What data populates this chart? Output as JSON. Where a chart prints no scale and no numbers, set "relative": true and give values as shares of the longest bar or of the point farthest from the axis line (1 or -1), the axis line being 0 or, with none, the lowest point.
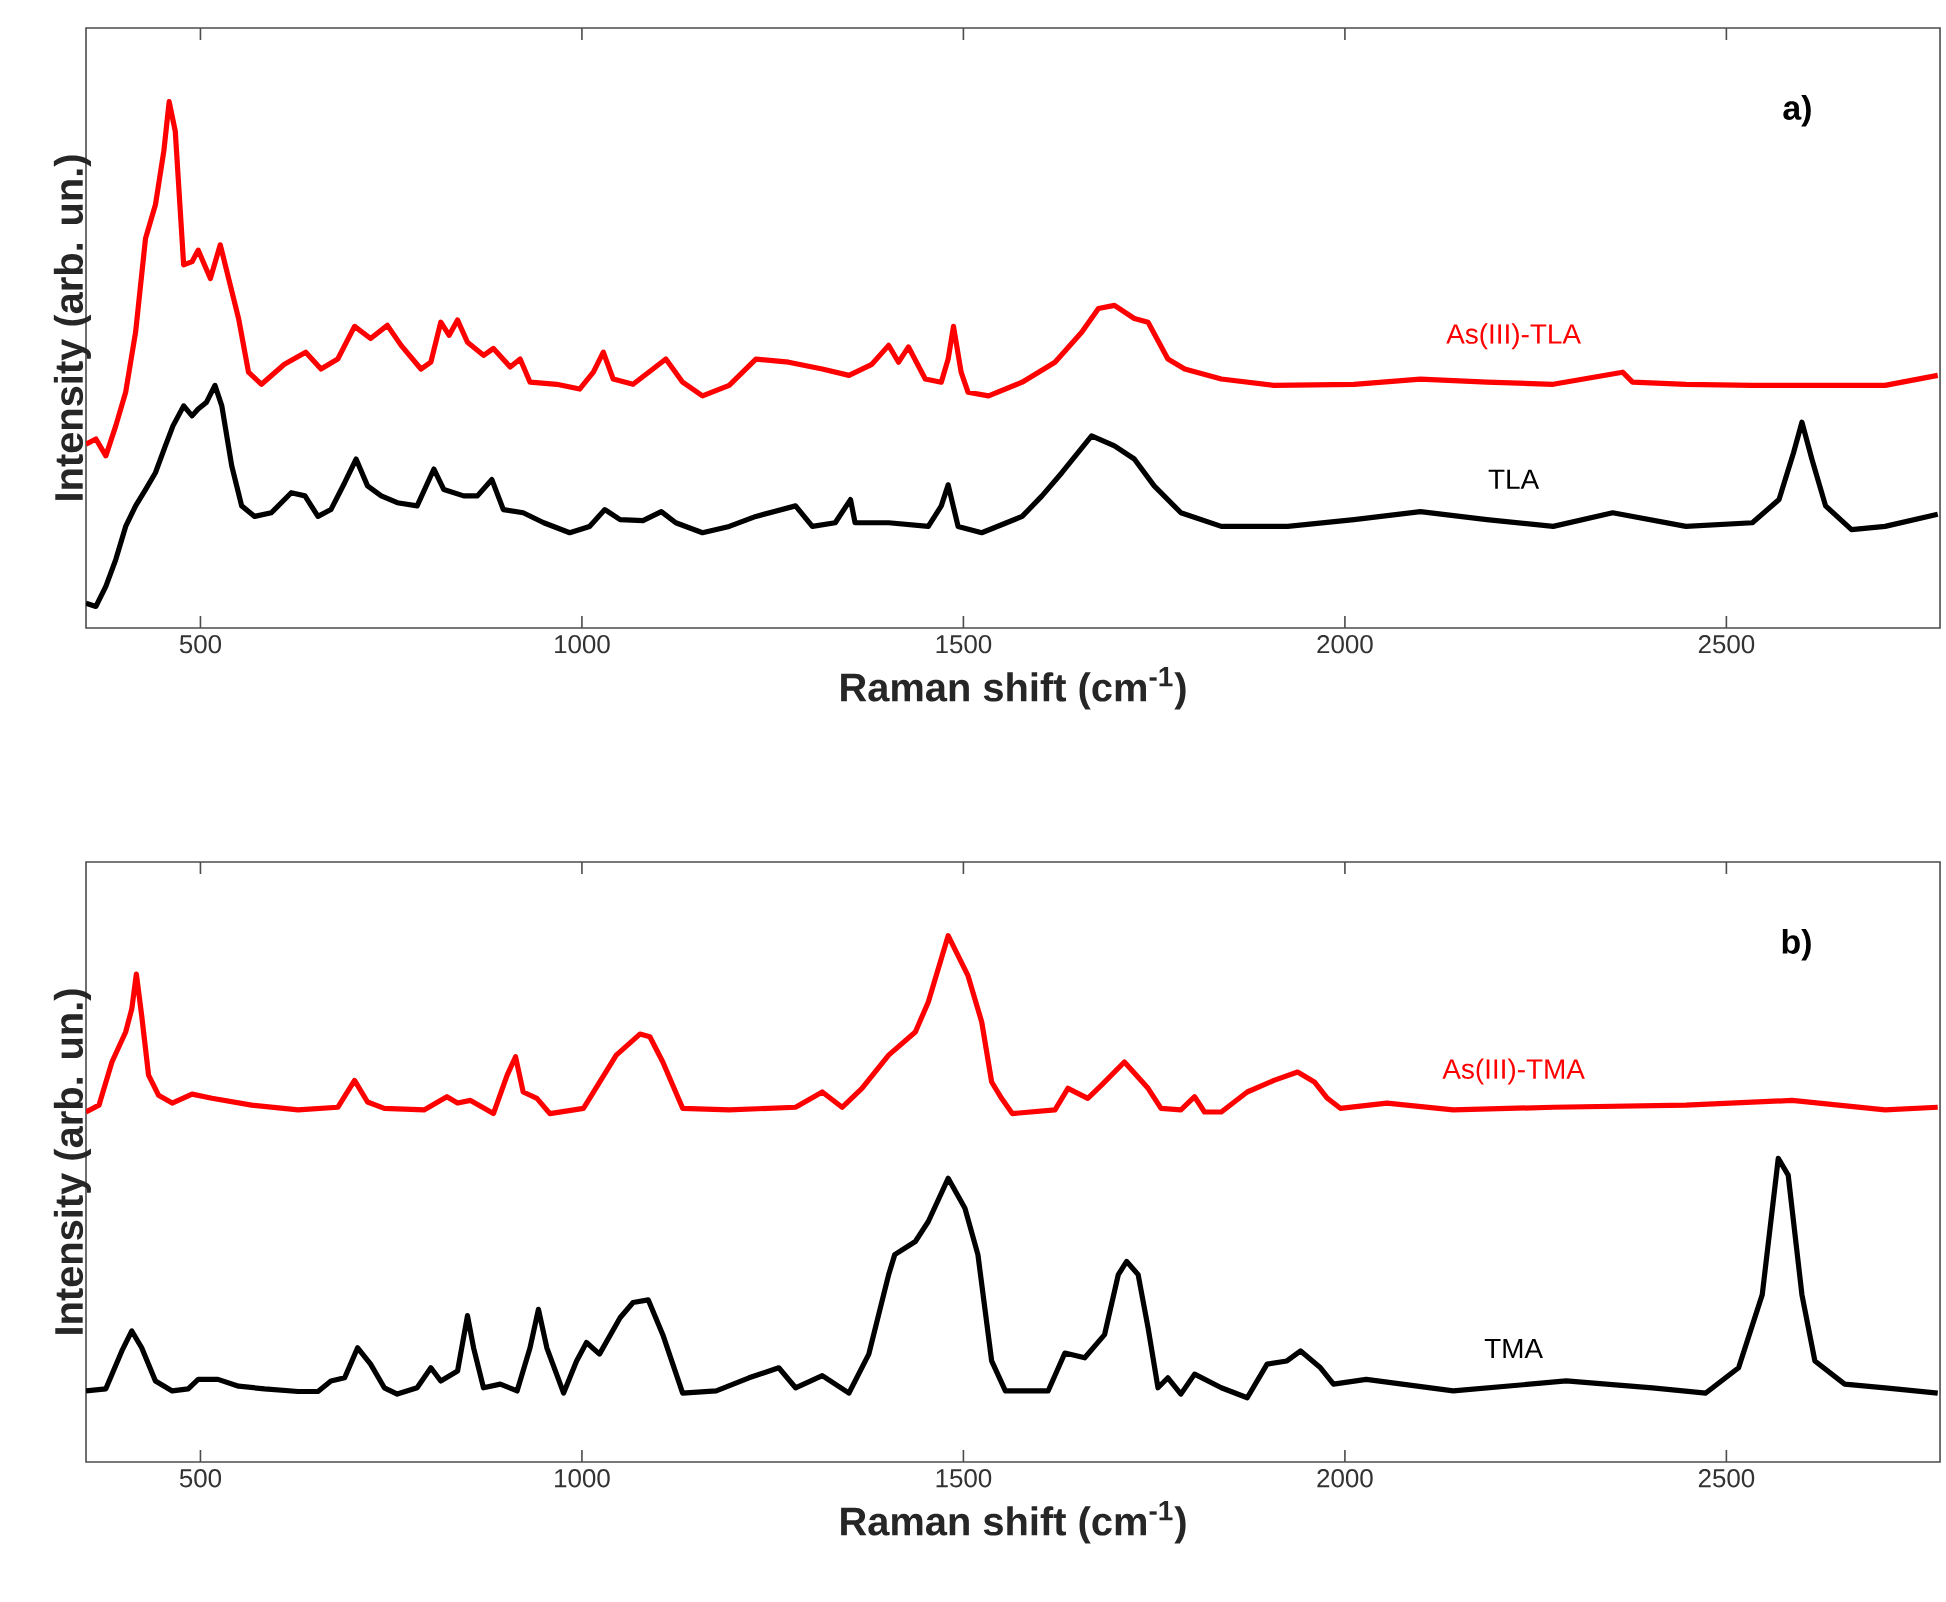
{
  "chart_data": [
    {
      "type": "line",
      "relative": true,
      "xlabel": "Raman shift (cm$^{-1}$)",
      "ylabel": "Intensity (arb. un.)",
      "xlim": [
        350,
        2780
      ],
      "xticks": [
        500,
        1000,
        1500,
        2000,
        2500
      ],
      "annotations": [
        "a)"
      ],
      "series": [
        {
          "name": "As(III)-TLA",
          "color": "#ff0000",
          "x": [
            350,
            363,
            376,
            389,
            402,
            415,
            428,
            441,
            452,
            459,
            467,
            478,
            489,
            497,
            513,
            526,
            537,
            550,
            563,
            580,
            610,
            638,
            658,
            680,
            702,
            723,
            745,
            763,
            789,
            802,
            815,
            826,
            837,
            850,
            871,
            884,
            906,
            919,
            932,
            967,
            997,
            1015,
            1028,
            1041,
            1067,
            1093,
            1110,
            1132,
            1158,
            1193,
            1228,
            1271,
            1315,
            1350,
            1380,
            1402,
            1415,
            1428,
            1450,
            1471,
            1480,
            1487,
            1497,
            1506,
            1533,
            1577,
            1620,
            1655,
            1677,
            1698,
            1724,
            1742,
            1768,
            1790,
            1838,
            1907,
            2012,
            2099,
            2186,
            2273,
            2364,
            2377,
            2447,
            2534,
            2621,
            2708,
            2777
          ],
          "values": [
            0.349,
            0.359,
            0.327,
            0.384,
            0.448,
            0.562,
            0.74,
            0.804,
            0.906,
            1.0,
            0.944,
            0.69,
            0.696,
            0.718,
            0.664,
            0.728,
            0.664,
            0.588,
            0.486,
            0.463,
            0.501,
            0.524,
            0.492,
            0.511,
            0.573,
            0.55,
            0.575,
            0.537,
            0.492,
            0.505,
            0.581,
            0.556,
            0.585,
            0.543,
            0.518,
            0.531,
            0.496,
            0.511,
            0.467,
            0.463,
            0.454,
            0.486,
            0.524,
            0.473,
            0.463,
            0.492,
            0.511,
            0.467,
            0.441,
            0.461,
            0.511,
            0.505,
            0.492,
            0.48,
            0.501,
            0.537,
            0.505,
            0.534,
            0.473,
            0.467,
            0.511,
            0.573,
            0.486,
            0.448,
            0.441,
            0.467,
            0.505,
            0.562,
            0.607,
            0.613,
            0.588,
            0.581,
            0.511,
            0.492,
            0.473,
            0.461,
            0.463,
            0.473,
            0.467,
            0.463,
            0.486,
            0.467,
            0.463,
            0.461,
            0.461,
            0.461,
            0.48
          ]
        },
        {
          "name": "TLA",
          "color": "#000000",
          "x": [
            350,
            363,
            376,
            389,
            402,
            415,
            428,
            441,
            454,
            464,
            478,
            489,
            497,
            508,
            519,
            528,
            541,
            554,
            571,
            593,
            619,
            637,
            654,
            671,
            689,
            704,
            719,
            737,
            758,
            784,
            806,
            819,
            845,
            863,
            882,
            897,
            923,
            950,
            984,
            1010,
            1030,
            1050,
            1080,
            1104,
            1123,
            1158,
            1193,
            1228,
            1280,
            1302,
            1332,
            1352,
            1358,
            1402,
            1454,
            1471,
            1480,
            1493,
            1524,
            1577,
            1603,
            1629,
            1668,
            1698,
            1724,
            1750,
            1785,
            1838,
            1925,
            2012,
            2099,
            2186,
            2273,
            2351,
            2447,
            2534,
            2569,
            2588,
            2599,
            2612,
            2630,
            2664,
            2708,
            2777
          ],
          "values": [
            0.047,
            0.041,
            0.079,
            0.13,
            0.193,
            0.232,
            0.263,
            0.295,
            0.346,
            0.384,
            0.422,
            0.403,
            0.416,
            0.429,
            0.461,
            0.422,
            0.308,
            0.232,
            0.212,
            0.219,
            0.257,
            0.251,
            0.212,
            0.225,
            0.276,
            0.321,
            0.27,
            0.251,
            0.238,
            0.232,
            0.302,
            0.263,
            0.251,
            0.251,
            0.282,
            0.225,
            0.219,
            0.2,
            0.181,
            0.193,
            0.225,
            0.206,
            0.204,
            0.221,
            0.2,
            0.181,
            0.193,
            0.212,
            0.232,
            0.193,
            0.2,
            0.244,
            0.2,
            0.2,
            0.193,
            0.232,
            0.272,
            0.193,
            0.181,
            0.212,
            0.251,
            0.295,
            0.365,
            0.346,
            0.321,
            0.27,
            0.219,
            0.193,
            0.193,
            0.206,
            0.221,
            0.206,
            0.193,
            0.219,
            0.193,
            0.2,
            0.244,
            0.333,
            0.391,
            0.321,
            0.232,
            0.187,
            0.193,
            0.216
          ]
        }
      ]
    },
    {
      "type": "line",
      "relative": true,
      "xlabel": "Raman shift (cm$^{-1}$)",
      "ylabel": "Intensity (arb. un.)",
      "xlim": [
        350,
        2780
      ],
      "xticks": [
        500,
        1000,
        1500,
        2000,
        2500
      ],
      "annotations": [
        "b)"
      ],
      "series": [
        {
          "name": "As(III)-TMA",
          "color": "#ff0000",
          "x": [
            350,
            367,
            384,
            402,
            410,
            416,
            423,
            432,
            445,
            463,
            489,
            515,
            567,
            628,
            680,
            702,
            719,
            741,
            793,
            823,
            837,
            854,
            884,
            902,
            913,
            923,
            941,
            958,
            1002,
            1045,
            1076,
            1089,
            1106,
            1132,
            1193,
            1280,
            1315,
            1341,
            1367,
            1402,
            1437,
            1454,
            1480,
            1506,
            1524,
            1537,
            1550,
            1564,
            1620,
            1637,
            1663,
            1681,
            1711,
            1742,
            1759,
            1785,
            1803,
            1816,
            1838,
            1872,
            1907,
            1938,
            1960,
            1977,
            1994,
            2055,
            2142,
            2273,
            2447,
            2586,
            2708,
            2777
          ],
          "values": [
            0.665,
            0.678,
            0.76,
            0.817,
            0.861,
            0.927,
            0.848,
            0.735,
            0.697,
            0.682,
            0.699,
            0.691,
            0.678,
            0.669,
            0.674,
            0.725,
            0.684,
            0.672,
            0.669,
            0.694,
            0.682,
            0.687,
            0.662,
            0.735,
            0.77,
            0.703,
            0.691,
            0.662,
            0.672,
            0.773,
            0.813,
            0.808,
            0.76,
            0.672,
            0.669,
            0.674,
            0.703,
            0.674,
            0.71,
            0.773,
            0.817,
            0.874,
            1.0,
            0.924,
            0.836,
            0.722,
            0.691,
            0.662,
            0.669,
            0.71,
            0.691,
            0.716,
            0.76,
            0.71,
            0.672,
            0.669,
            0.694,
            0.665,
            0.665,
            0.703,
            0.725,
            0.741,
            0.722,
            0.691,
            0.672,
            0.682,
            0.669,
            0.674,
            0.678,
            0.687,
            0.669,
            0.674
          ]
        },
        {
          "name": "TMA",
          "color": "#000000",
          "x": [
            350,
            376,
            397,
            410,
            423,
            441,
            463,
            484,
            497,
            523,
            550,
            584,
            628,
            654,
            671,
            689,
            706,
            723,
            741,
            758,
            784,
            802,
            815,
            837,
            850,
            858,
            871,
            893,
            915,
            932,
            943,
            954,
            976,
            993,
            1006,
            1023,
            1050,
            1067,
            1087,
            1106,
            1132,
            1176,
            1219,
            1258,
            1280,
            1315,
            1350,
            1376,
            1402,
            1410,
            1437,
            1454,
            1480,
            1502,
            1519,
            1537,
            1555,
            1611,
            1633,
            1659,
            1685,
            1703,
            1714,
            1729,
            1742,
            1755,
            1768,
            1785,
            1803,
            1838,
            1872,
            1898,
            1924,
            1942,
            1968,
            1985,
            2028,
            2142,
            2290,
            2403,
            2473,
            2516,
            2547,
            2568,
            2581,
            2599,
            2616,
            2655,
            2708,
            2777
          ],
          "values": [
            0.135,
            0.139,
            0.211,
            0.249,
            0.217,
            0.154,
            0.135,
            0.139,
            0.157,
            0.157,
            0.144,
            0.139,
            0.134,
            0.134,
            0.154,
            0.16,
            0.217,
            0.186,
            0.141,
            0.129,
            0.141,
            0.179,
            0.154,
            0.173,
            0.278,
            0.217,
            0.141,
            0.148,
            0.135,
            0.217,
            0.29,
            0.217,
            0.131,
            0.192,
            0.227,
            0.205,
            0.274,
            0.303,
            0.308,
            0.242,
            0.131,
            0.135,
            0.16,
            0.179,
            0.141,
            0.164,
            0.131,
            0.205,
            0.356,
            0.394,
            0.419,
            0.457,
            0.539,
            0.482,
            0.394,
            0.192,
            0.135,
            0.135,
            0.207,
            0.198,
            0.242,
            0.356,
            0.381,
            0.356,
            0.255,
            0.141,
            0.16,
            0.129,
            0.167,
            0.141,
            0.122,
            0.186,
            0.192,
            0.211,
            0.179,
            0.148,
            0.157,
            0.135,
            0.154,
            0.141,
            0.131,
            0.179,
            0.318,
            0.577,
            0.545,
            0.318,
            0.192,
            0.148,
            0.141,
            0.131
          ]
        }
      ]
    }
  ]
}
